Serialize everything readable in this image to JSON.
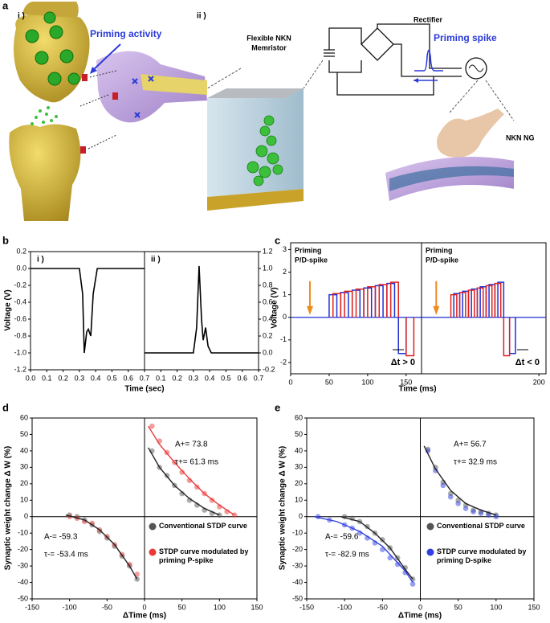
{
  "illustration": {
    "label": "a",
    "sub_labels": [
      "i )",
      "ii )"
    ],
    "priming_activity": "Priming activity",
    "memristor_label": [
      "Flexible NKN",
      "Memristor"
    ],
    "rectifier": "Rectifier",
    "priming_spike": "Priming spike",
    "ng_label": "NKN NG"
  },
  "chart_data": [
    {
      "type": "line",
      "label": "b",
      "xlabel": "Time (sec)",
      "ylabel": "Voltage (V)",
      "subplots": [
        {
          "label": "i )",
          "xlim": [
            0,
            0.7
          ],
          "xticks": [
            {
              "value": 0,
              "label": "0.0"
            },
            0.1,
            0.2,
            0.3,
            0.4,
            0.5,
            0.6,
            0.7
          ],
          "ylim": [
            -1.2,
            0.2
          ],
          "yticks": [
            -1.2,
            {
              "value": -1,
              "label": "-1.0"
            },
            -0.8,
            -0.6,
            -0.4,
            -0.2,
            {
              "value": 0,
              "label": "0.0"
            },
            0.2
          ],
          "series": [
            {
              "color": "#000000",
              "x": [
                0,
                0.3,
                0.32,
                0.33,
                0.345,
                0.355,
                0.37,
                0.385,
                0.41,
                0.7
              ],
              "values": [
                0,
                0,
                -0.3,
                -1.0,
                -0.75,
                -0.72,
                -0.8,
                -0.3,
                0,
                0
              ]
            }
          ]
        },
        {
          "label": "ii )",
          "xlim": [
            0,
            0.7
          ],
          "yaxis_side": "right",
          "xticks": [
            0.1,
            0.2,
            0.3,
            0.4,
            0.5,
            0.6,
            0.7
          ],
          "ylim": [
            -0.2,
            1.2
          ],
          "yticks": [
            -0.2,
            {
              "value": 0,
              "label": "0.0"
            },
            0.2,
            0.4,
            0.6,
            0.8,
            {
              "value": 1,
              "label": "1.0"
            },
            1.2
          ],
          "series": [
            {
              "color": "#000000",
              "x": [
                0,
                0.3,
                0.32,
                0.335,
                0.35,
                0.36,
                0.375,
                0.39,
                0.41,
                0.7
              ],
              "values": [
                0,
                0,
                0.3,
                1.03,
                0.4,
                0.15,
                0.3,
                0.08,
                0,
                0
              ]
            }
          ]
        }
      ]
    },
    {
      "type": "pulse",
      "label": "c",
      "xlabel": "Time (ms)",
      "ylabel": "Voltage (V)",
      "subplots": [
        {
          "annotation": [
            "Priming",
            "P/D-spike"
          ],
          "delta": "Δt > 0",
          "xlim": [
            0,
            170
          ],
          "xticks": [
            0,
            50,
            100,
            150
          ],
          "ylim": [
            -2.5,
            3.3
          ],
          "yticks": [
            -2,
            -1,
            0,
            1,
            2,
            3
          ],
          "series": [
            {
              "color": "#1f2fd6",
              "pulses": [
                [
                  50,
                  60,
                  1.0
                ],
                [
                  65,
                  75,
                  1.1
                ],
                [
                  80,
                  90,
                  1.2
                ],
                [
                  95,
                  105,
                  1.3
                ],
                [
                  110,
                  120,
                  1.4
                ],
                [
                  125,
                  135,
                  1.5
                ],
                [
                  140,
                  150,
                  -1.6
                ]
              ]
            },
            {
              "color": "#e0201c",
              "pulses": [
                [
                  55,
                  65,
                  1.05
                ],
                [
                  70,
                  80,
                  1.15
                ],
                [
                  85,
                  95,
                  1.25
                ],
                [
                  100,
                  110,
                  1.35
                ],
                [
                  115,
                  125,
                  1.45
                ],
                [
                  130,
                  140,
                  1.55
                ],
                [
                  150,
                  160,
                  -1.7
                ]
              ]
            }
          ]
        },
        {
          "annotation": [
            "Priming",
            "P/D-spike"
          ],
          "delta": "Δt < 0",
          "xlim": [
            0,
            212
          ],
          "xticks": [
            200
          ],
          "ylim": [
            -2.5,
            3.3
          ],
          "series": [
            {
              "color": "#1f2fd6",
              "pulses": [
                [
                  55,
                  65,
                  1.05
                ],
                [
                  70,
                  80,
                  1.15
                ],
                [
                  85,
                  95,
                  1.25
                ],
                [
                  100,
                  110,
                  1.35
                ],
                [
                  115,
                  125,
                  1.45
                ],
                [
                  130,
                  140,
                  1.55
                ],
                [
                  150,
                  160,
                  -1.6
                ]
              ]
            },
            {
              "color": "#e0201c",
              "pulses": [
                [
                  50,
                  60,
                  1.0
                ],
                [
                  65,
                  75,
                  1.1
                ],
                [
                  80,
                  90,
                  1.2
                ],
                [
                  95,
                  105,
                  1.3
                ],
                [
                  110,
                  120,
                  1.4
                ],
                [
                  125,
                  135,
                  1.5
                ],
                [
                  140,
                  150,
                  -1.7
                ]
              ]
            }
          ]
        }
      ]
    },
    {
      "type": "scatter",
      "label": "d",
      "xlabel": "ΔTime (ms)",
      "ylabel": "Synaptic weight change Δ W (%)",
      "xlim": [
        -150,
        150
      ],
      "xticks": [
        -150,
        -100,
        -50,
        0,
        50,
        100,
        150
      ],
      "ylim": [
        -50,
        60
      ],
      "yticks": [
        -50,
        -40,
        -30,
        -20,
        -10,
        0,
        10,
        20,
        30,
        40,
        50,
        60
      ],
      "annotations": [
        "A+= 73.8",
        "τ+= 61.3 ms",
        "A-= -59.3",
        "τ-= -53.4 ms"
      ],
      "series": [
        {
          "name": "Conventional STDP curve",
          "color": "#555555",
          "x": [
            -100,
            -90,
            -80,
            -70,
            -60,
            -50,
            -40,
            -30,
            -20,
            -10,
            10,
            20,
            30,
            40,
            50,
            60,
            70,
            80,
            90,
            100
          ],
          "values": [
            1,
            0,
            -2,
            -5,
            -9,
            -13,
            -18,
            -24,
            -30,
            -38,
            40,
            30,
            25,
            19,
            14,
            10,
            7,
            4,
            2,
            1
          ]
        },
        {
          "name": "STDP curve modulated by priming P-spike",
          "color": "#e83a3a",
          "x": [
            -100,
            -90,
            -80,
            -70,
            -60,
            -50,
            -40,
            -30,
            -20,
            -10,
            10,
            20,
            30,
            40,
            50,
            60,
            70,
            80,
            90,
            100,
            110,
            120
          ],
          "values": [
            0,
            -1,
            -3,
            -4,
            -8,
            -12,
            -17,
            -23,
            -29,
            -35,
            55,
            46,
            39,
            33,
            27,
            22,
            18,
            14,
            10,
            6,
            3,
            1
          ]
        }
      ],
      "fits": [
        {
          "color": "#222222",
          "x": [
            -105,
            -80,
            -60,
            -40,
            -20,
            -10,
            null,
            5,
            20,
            40,
            60,
            80,
            100
          ],
          "values": [
            1,
            -2,
            -8,
            -17,
            -30,
            -38,
            null,
            42,
            30,
            19,
            11,
            5,
            1
          ]
        },
        {
          "color": "#e83a3a",
          "x": [
            5,
            20,
            40,
            60,
            80,
            100,
            120
          ],
          "values": [
            55,
            44,
            33,
            23,
            14,
            7,
            1
          ]
        }
      ]
    },
    {
      "type": "scatter",
      "label": "e",
      "xlabel": "ΔTime (ms)",
      "ylabel": "Synaptic weight change Δ W (%)",
      "xlim": [
        -150,
        150
      ],
      "xticks": [
        -150,
        -100,
        -50,
        0,
        50,
        100,
        150
      ],
      "ylim": [
        -50,
        60
      ],
      "yticks": [
        -50,
        -40,
        -30,
        -20,
        -10,
        0,
        10,
        20,
        30,
        40,
        50,
        60
      ],
      "annotations": [
        "A+= 56.7",
        "τ+= 32.9 ms",
        "A-= -59.6",
        "τ-= -82.9 ms"
      ],
      "series": [
        {
          "name": "Conventional STDP curve",
          "color": "#555555",
          "x": [
            -100,
            -90,
            -80,
            -70,
            -60,
            -50,
            -40,
            -30,
            -20,
            -10,
            10,
            20,
            30,
            40,
            50,
            60,
            70,
            80,
            90,
            100
          ],
          "values": [
            0,
            -1,
            -3,
            -6,
            -10,
            -14,
            -19,
            -25,
            -31,
            -38,
            41,
            30,
            21,
            14,
            10,
            7,
            4,
            3,
            2,
            1
          ]
        },
        {
          "name": "STDP curve modulated by priming D-spike",
          "color": "#3040e0",
          "x": [
            -135,
            -120,
            -100,
            -90,
            -80,
            -70,
            -60,
            -50,
            -40,
            -30,
            -20,
            -10,
            10,
            20,
            30,
            40,
            50,
            60,
            70,
            80,
            90,
            100
          ],
          "values": [
            0,
            -2,
            -5,
            -7,
            -10,
            -13,
            -16,
            -20,
            -25,
            -29,
            -34,
            -41,
            40,
            28,
            19,
            12,
            8,
            5,
            3,
            2,
            1,
            0
          ]
        }
      ],
      "fits": [
        {
          "color": "#222222",
          "x": [
            -105,
            -80,
            -60,
            -40,
            -20,
            -10,
            null,
            5,
            20,
            40,
            60,
            80,
            100
          ],
          "values": [
            0,
            -3,
            -10,
            -19,
            -32,
            -38,
            null,
            43,
            29,
            16,
            8,
            4,
            1
          ]
        },
        {
          "color": "#3040e0",
          "x": [
            -140,
            -110,
            -80,
            -50,
            -20,
            -10
          ],
          "values": [
            0,
            -3,
            -9,
            -18,
            -33,
            -40
          ]
        }
      ]
    }
  ]
}
